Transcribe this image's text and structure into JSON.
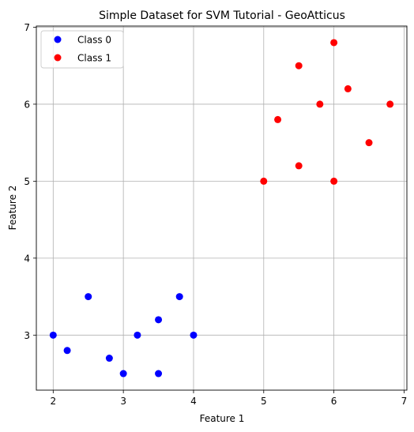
{
  "chart_data": {
    "type": "scatter",
    "title": "Simple Dataset for SVM Tutorial - GeoAtticus",
    "xlabel": "Feature 1",
    "ylabel": "Feature 2",
    "xlim": [
      1.76,
      7.04
    ],
    "ylim": [
      2.285,
      7.015
    ],
    "xticks": [
      2,
      3,
      4,
      5,
      6,
      7
    ],
    "yticks": [
      3,
      4,
      5,
      6,
      7
    ],
    "grid": true,
    "legend_position": "upper-left",
    "series": [
      {
        "name": "Class 0",
        "color": "#0000ff",
        "points": [
          [
            2,
            3
          ],
          [
            2.2,
            2.8
          ],
          [
            2.5,
            3.5
          ],
          [
            2.8,
            2.7
          ],
          [
            3,
            2.5
          ],
          [
            3.2,
            3
          ],
          [
            3.5,
            3.2
          ],
          [
            3.5,
            2.5
          ],
          [
            3.8,
            3.5
          ],
          [
            4,
            3
          ]
        ]
      },
      {
        "name": "Class 1",
        "color": "#ff0000",
        "points": [
          [
            5,
            5
          ],
          [
            5.2,
            5.8
          ],
          [
            5.5,
            6.5
          ],
          [
            5.5,
            5.2
          ],
          [
            5.8,
            6
          ],
          [
            6,
            6.8
          ],
          [
            6,
            5
          ],
          [
            6.2,
            6.2
          ],
          [
            6.5,
            5.5
          ],
          [
            6.8,
            6
          ]
        ]
      }
    ]
  }
}
